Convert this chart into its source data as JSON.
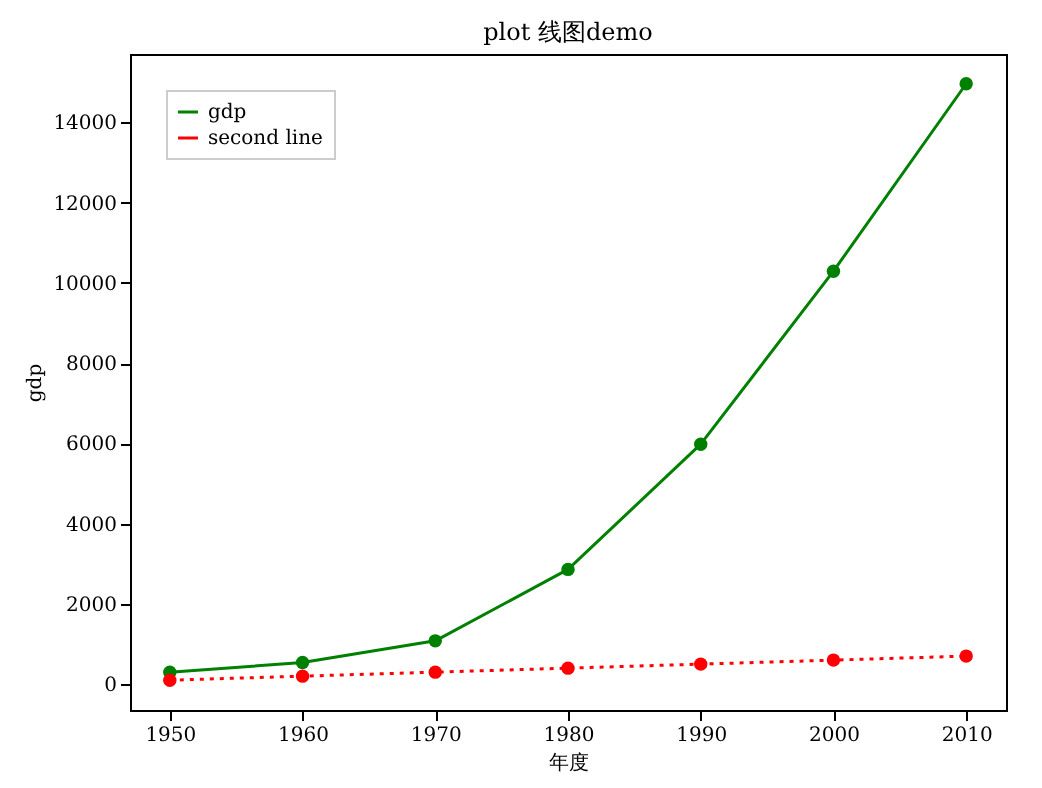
{
  "chart_data": {
    "type": "line",
    "title": "plot 线图demo",
    "xlabel": "年度",
    "ylabel": "gdp",
    "x": [
      1950,
      1960,
      1970,
      1980,
      1990,
      2000,
      2010
    ],
    "series": [
      {
        "name": "gdp",
        "color": "#008000",
        "values": [
          300,
          540,
          1080,
          2860,
          5980,
          10290,
          14960
        ],
        "marker": "circle",
        "line_style": "solid"
      },
      {
        "name": "second line",
        "color": "#ff0000",
        "values": [
          100,
          200,
          300,
          400,
          500,
          600,
          700
        ],
        "marker": "circle",
        "line_style": "dotted"
      }
    ],
    "xlim": [
      1947,
      2013
    ],
    "xticks": [
      1950,
      1960,
      1970,
      1980,
      1990,
      2000,
      2010
    ],
    "ylim": [
      -643,
      15701
    ],
    "yticks": [
      0,
      2000,
      4000,
      6000,
      8000,
      10000,
      12000,
      14000
    ],
    "legend": "top left",
    "grid": false
  }
}
